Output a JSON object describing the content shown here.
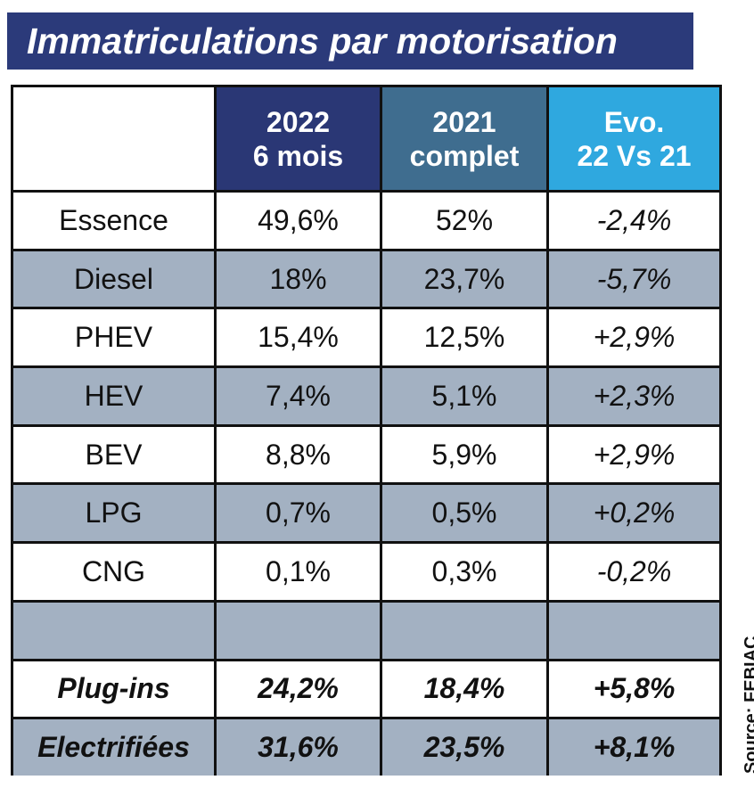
{
  "title": "Immatriculations par motorisation",
  "table": {
    "header": [
      [
        "2022",
        "6 mois"
      ],
      [
        "2021",
        "complet"
      ],
      [
        "Evo.",
        "22 Vs 21"
      ]
    ],
    "rows": [
      [
        "Essence",
        "49,6%",
        "52%",
        "-2,4%"
      ],
      [
        "Diesel",
        "18%",
        "23,7%",
        "-5,7%"
      ],
      [
        "PHEV",
        "15,4%",
        "12,5%",
        "+2,9%"
      ],
      [
        "HEV",
        "7,4%",
        "5,1%",
        "+2,3%"
      ],
      [
        "BEV",
        "8,8%",
        "5,9%",
        "+2,9%"
      ],
      [
        "LPG",
        "0,7%",
        "0,5%",
        "+0,2%"
      ],
      [
        "CNG",
        "0,1%",
        "0,3%",
        "-0,2%"
      ]
    ],
    "totals": [
      [
        "Plug-ins",
        "24,2%",
        "18,4%",
        "+5,8%"
      ],
      [
        "Electrifiées",
        "31,6%",
        "23,5%",
        "+8,1%"
      ]
    ]
  },
  "source": "Source: FEBIAC"
}
